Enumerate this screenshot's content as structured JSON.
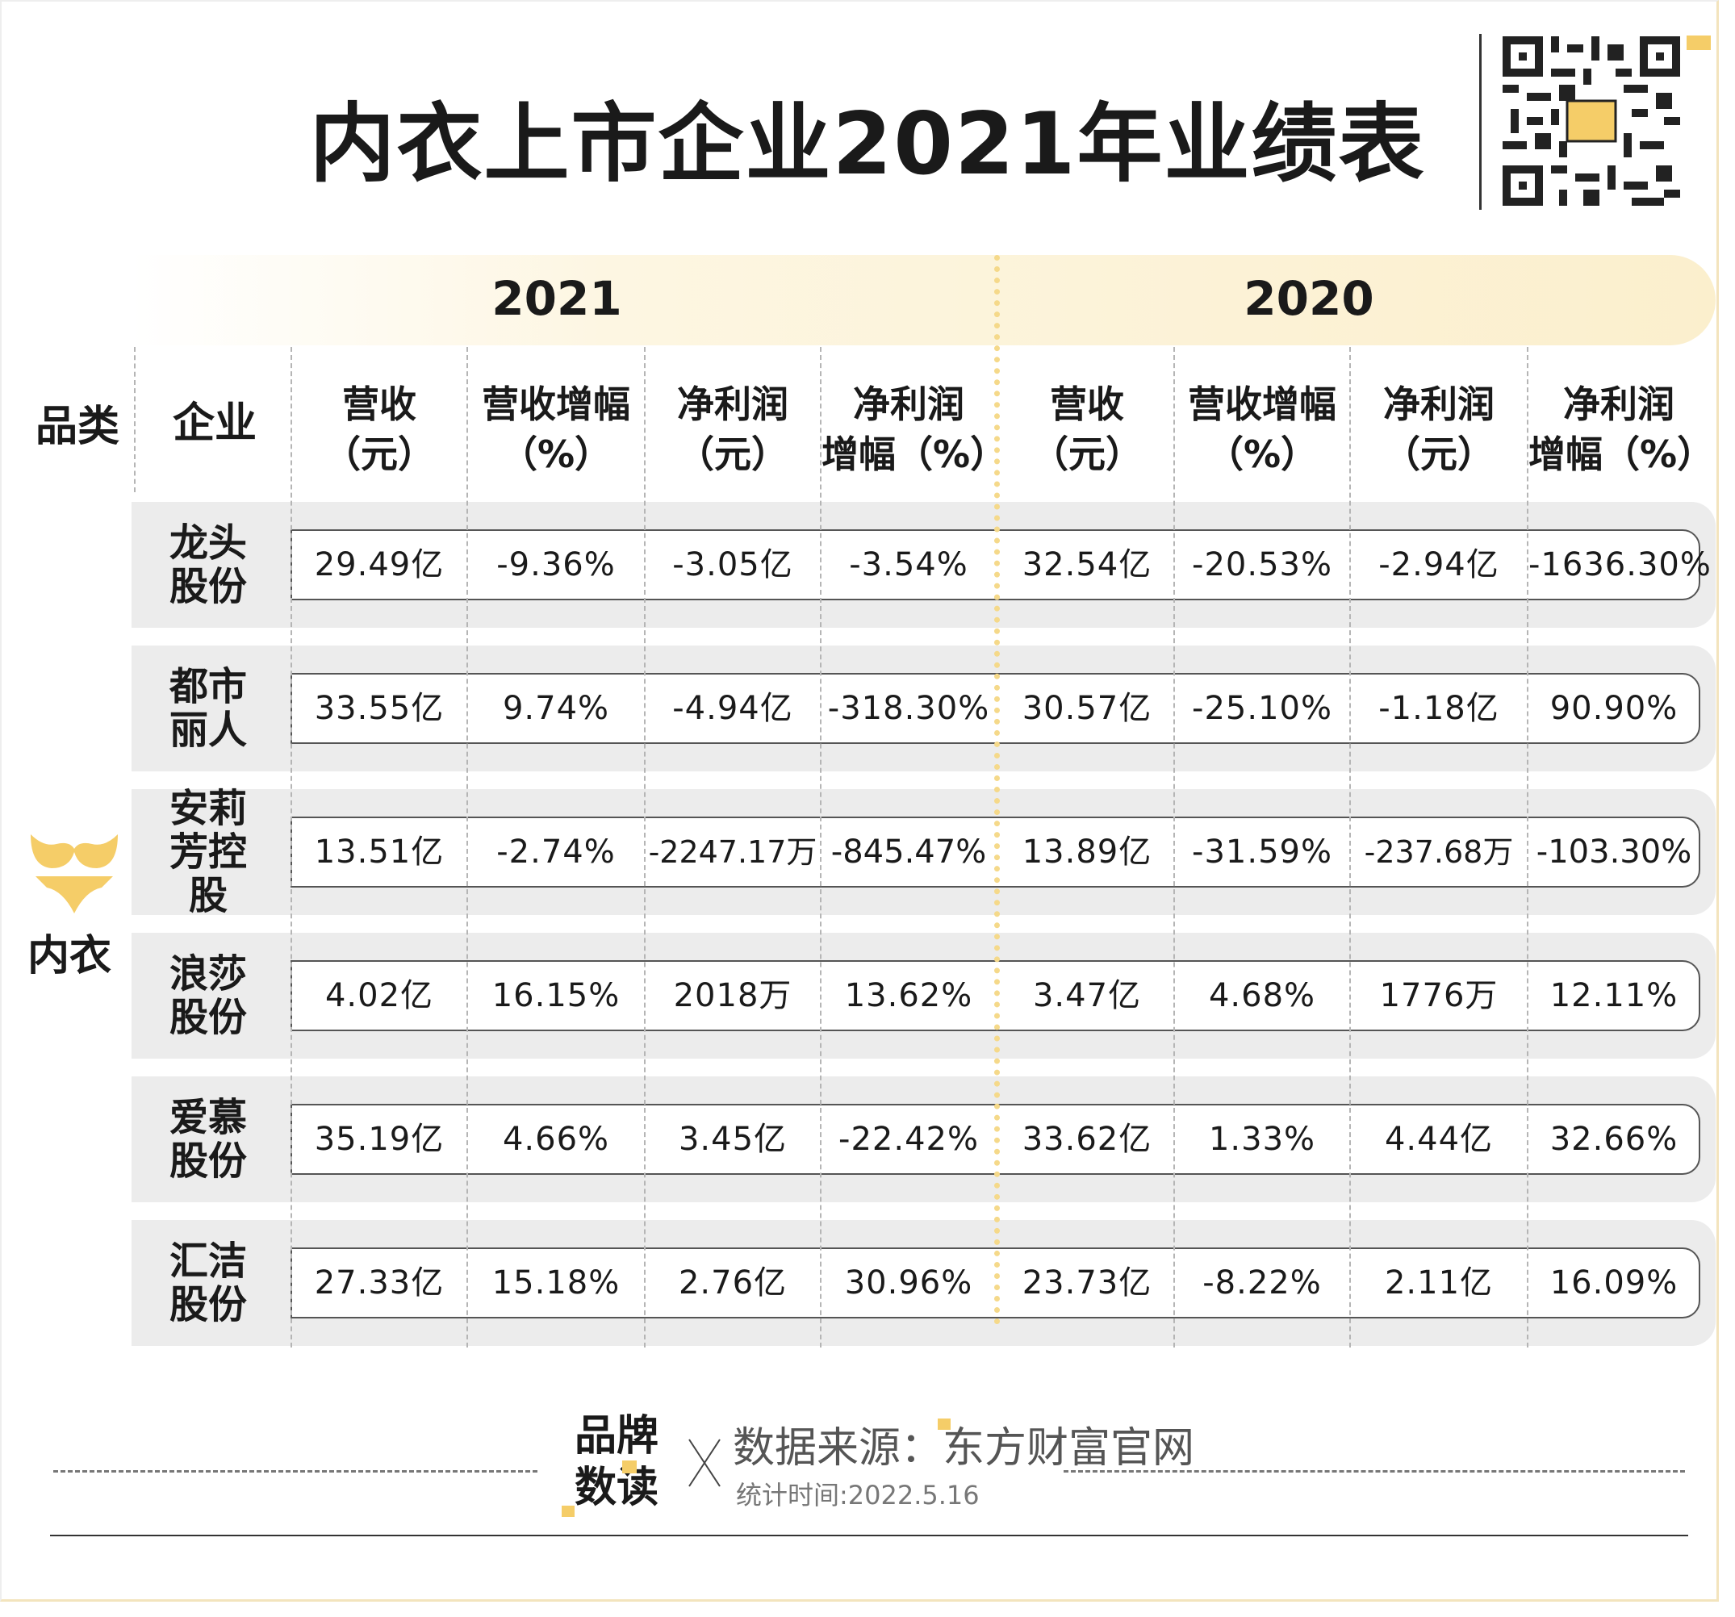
{
  "title": "内衣上市企业2021年业绩表",
  "years": {
    "y2021": "2021",
    "y2020": "2020"
  },
  "header": {
    "category": "品类",
    "company": "企业",
    "columns": [
      {
        "line1": "营收",
        "line2": "（元）"
      },
      {
        "line1": "营收增幅",
        "line2": "（%）"
      },
      {
        "line1": "净利润",
        "line2": "（元）"
      },
      {
        "line1": "净利润",
        "line2": "增幅（%）"
      },
      {
        "line1": "营收",
        "line2": "（元）"
      },
      {
        "line1": "营收增幅",
        "line2": "（%）"
      },
      {
        "line1": "净利润",
        "line2": "（元）"
      },
      {
        "line1": "净利润",
        "line2": "增幅（%）"
      }
    ]
  },
  "category_label": "内衣",
  "category_icon": "bra-icon",
  "rows": [
    {
      "company": "龙头股份",
      "values": [
        "29.49亿",
        "-9.36%",
        "-3.05亿",
        "-3.54%",
        "32.54亿",
        "-20.53%",
        "-2.94亿",
        "-1636.30%"
      ]
    },
    {
      "company": "都市丽人",
      "values": [
        "33.55亿",
        "9.74%",
        "-4.94亿",
        "-318.30%",
        "30.57亿",
        "-25.10%",
        "-1.18亿",
        "90.90%"
      ]
    },
    {
      "company": "安莉芳控股",
      "values": [
        "13.51亿",
        "-2.74%",
        "-2247.17万",
        "-845.47%",
        "13.89亿",
        "-31.59%",
        "-237.68万",
        "-103.30%"
      ]
    },
    {
      "company": "浪莎股份",
      "values": [
        "4.02亿",
        "16.15%",
        "2018万",
        "13.62%",
        "3.47亿",
        "4.68%",
        "1776万",
        "12.11%"
      ]
    },
    {
      "company": "爱慕股份",
      "values": [
        "35.19亿",
        "4.66%",
        "3.45亿",
        "-22.42%",
        "33.62亿",
        "1.33%",
        "4.44亿",
        "32.66%"
      ]
    },
    {
      "company": "汇洁股份",
      "values": [
        "27.33亿",
        "15.18%",
        "2.76亿",
        "30.96%",
        "23.73亿",
        "-8.22%",
        "2.11亿",
        "16.09%"
      ]
    }
  ],
  "footer": {
    "brand_logo_text": "品牌数读",
    "source": "数据来源：东方财富官网",
    "stat_time": "统计时间:2022.5.16"
  },
  "colors": {
    "accent": "#f5cd68",
    "band": "#ececec",
    "year_band": "#fbefcd"
  }
}
